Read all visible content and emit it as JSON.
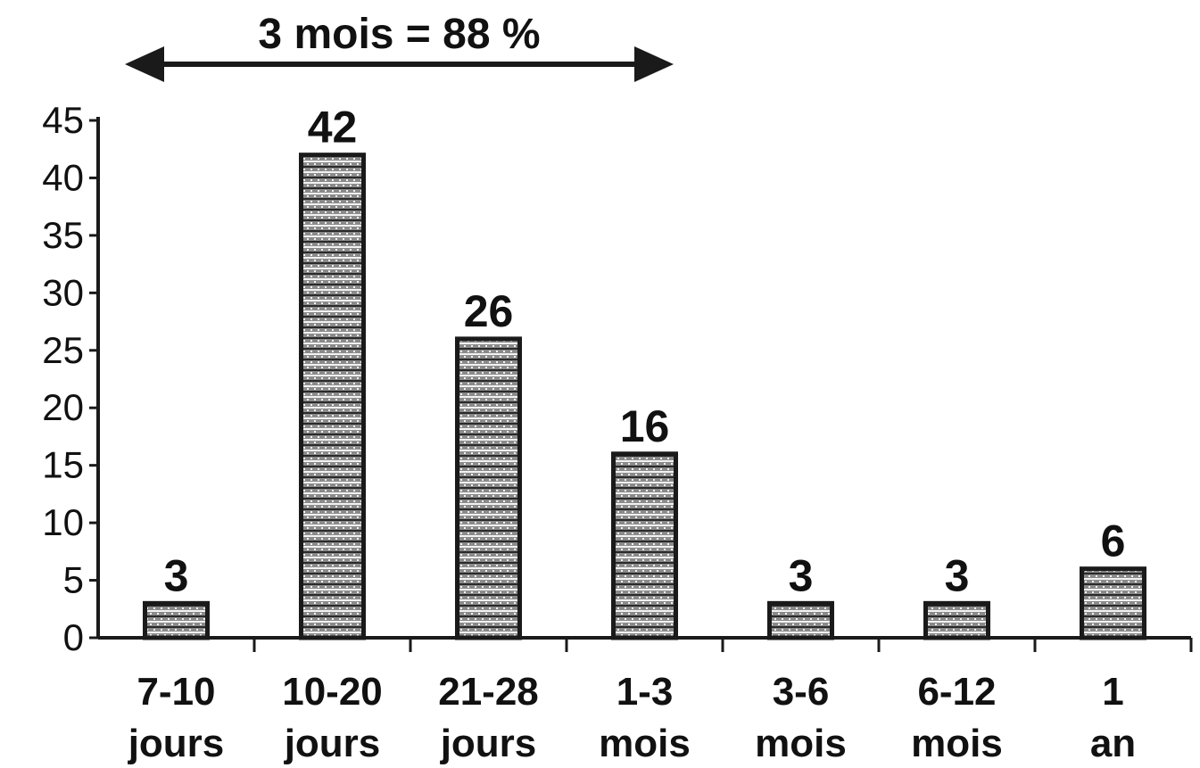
{
  "chart_data": {
    "type": "bar",
    "categories": [
      [
        "7-10",
        "jours"
      ],
      [
        "10-20",
        "jours"
      ],
      [
        "21-28",
        "jours"
      ],
      [
        "1-3",
        "mois"
      ],
      [
        "3-6",
        "mois"
      ],
      [
        "6-12",
        "mois"
      ],
      [
        "1",
        "an"
      ]
    ],
    "values": [
      3,
      42,
      26,
      16,
      3,
      3,
      6
    ],
    "data_labels": [
      "3",
      "42",
      "26",
      "16",
      "3",
      "3",
      "6"
    ],
    "yticks": [
      "0",
      "5",
      "10",
      "15",
      "20",
      "25",
      "30",
      "35",
      "40",
      "45"
    ],
    "ylim": [
      0,
      45
    ],
    "title": "",
    "xlabel": "",
    "ylabel": "",
    "grid": false,
    "annotation": {
      "text": "3 mois = 88 %",
      "spans_categories": [
        0,
        3
      ]
    },
    "colors": {
      "bar_fill": "#8a8a8a",
      "bar_outline": "#1a1a1a",
      "bar_stripe": "#f2f2f2",
      "axis": "#1a1a1a",
      "text": "#111111"
    }
  }
}
